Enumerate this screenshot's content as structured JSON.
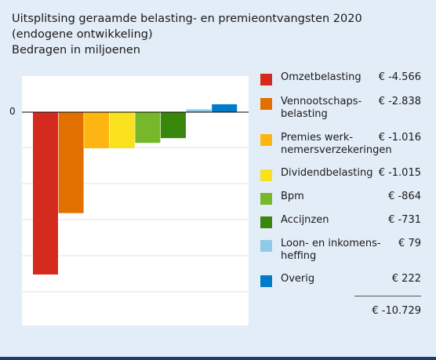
{
  "chart_data": {
    "type": "bar",
    "title": "Uitsplitsing geraamde belasting- en premieontvangsten 2020",
    "subtitle": "(endogene ontwikkeling)",
    "unit_note": "Bedragen in miljoenen",
    "zero_label": "0",
    "ylim": [
      -5000,
      500
    ],
    "categories": [
      "Omzetbelasting",
      "Vennootschaps-\nbelasting",
      "Premies werk-\nnemersverzekeringen",
      "Dividendbelasting",
      "Bpm",
      "Accijnzen",
      "Loon- en inkomens-\nheffing",
      "Overig"
    ],
    "values": [
      -4566,
      -2838,
      -1016,
      -1015,
      -864,
      -731,
      79,
      222
    ],
    "value_labels": [
      "€ -4.566",
      "€ -2.838",
      "€ -1.016",
      "€ -1.015",
      "€ -864",
      "€ -731",
      "€ 79",
      "€ 222"
    ],
    "colors": [
      "#d52b1e",
      "#e17000",
      "#ffb612",
      "#f9e11e",
      "#76b82a",
      "#39870c",
      "#8fcae7",
      "#007bc7"
    ],
    "total_label": "€ -10.729",
    "legend_position": "right",
    "grid": true
  }
}
